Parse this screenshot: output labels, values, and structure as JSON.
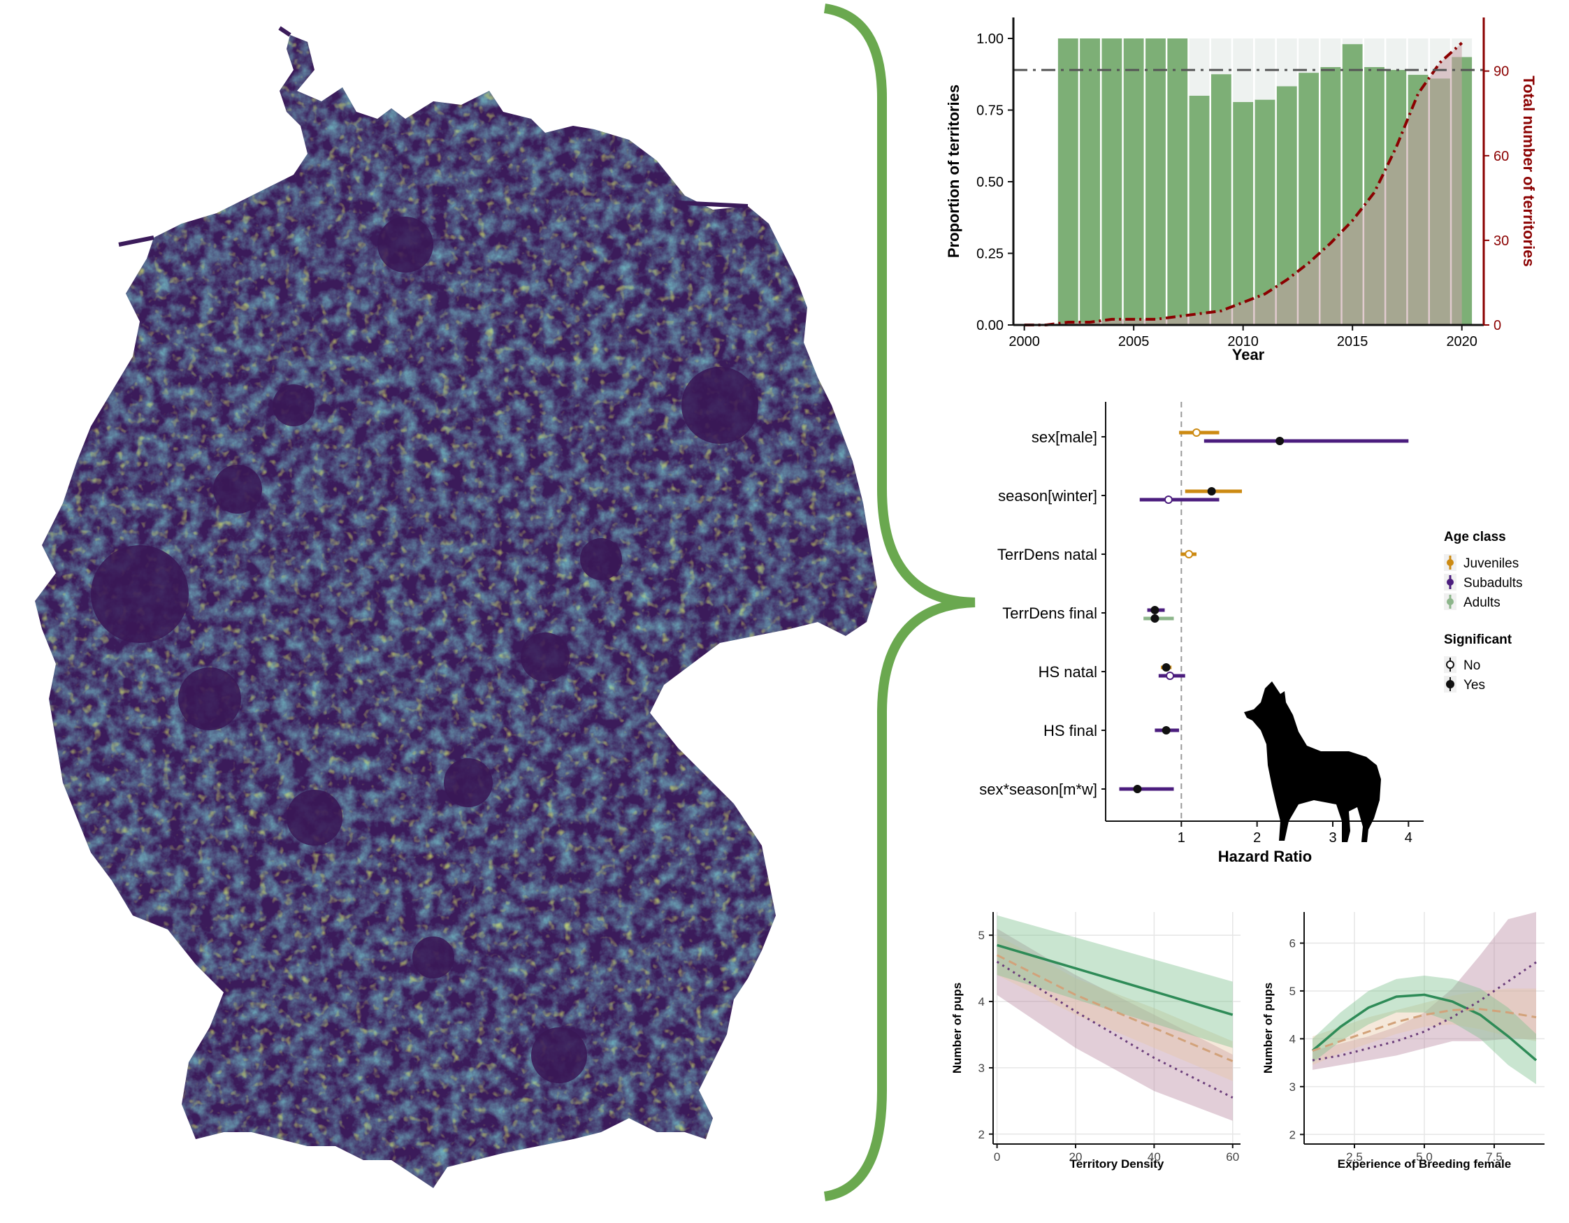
{
  "colors": {
    "brace": "#6aa84f",
    "viridis_dark": "#3b1b5a",
    "viridis_mid": "#2f6e8e",
    "viridis_teal": "#21908d",
    "viridis_yellow": "#c8e020",
    "bar_green": "#7daf76",
    "bar_bg": "#eef2f0",
    "cum_line": "#8b0000",
    "cum_fill": "#c9a0a8",
    "juveniles": "#cc8a12",
    "subadults": "#4b1d7e",
    "adults": "#8cb58a",
    "curve_green": "#2e8b57",
    "curve_tan": "#d2a27a",
    "curve_purple": "#6a3d7a"
  },
  "chart_data": [
    {
      "type": "bar",
      "xlabel": "Year",
      "ylabel": "Proportion of territories",
      "y2label": "Total number of territories",
      "x": [
        2002,
        2003,
        2004,
        2005,
        2006,
        2007,
        2008,
        2009,
        2010,
        2011,
        2012,
        2013,
        2014,
        2015,
        2016,
        2017,
        2018,
        2019,
        2020
      ],
      "values": [
        1.0,
        1.0,
        1.0,
        1.0,
        1.0,
        1.0,
        0.8,
        0.875,
        0.778,
        0.786,
        0.833,
        0.88,
        0.9,
        0.98,
        0.9,
        0.89,
        0.873,
        0.86,
        0.935
      ],
      "reference_line": 0.89,
      "cumulative_territories": {
        "x": [
          2000,
          2001,
          2002,
          2003,
          2004,
          2005,
          2006,
          2007,
          2008,
          2009,
          2010,
          2011,
          2012,
          2013,
          2014,
          2015,
          2016,
          2017,
          2018,
          2019,
          2020
        ],
        "values": [
          0,
          0,
          1,
          1,
          2,
          2,
          2,
          3,
          4,
          5,
          8,
          11,
          16,
          22,
          29,
          37,
          47,
          63,
          82,
          93,
          100
        ]
      },
      "xlim": [
        1999.5,
        2021
      ],
      "ylim": [
        0,
        1.0
      ],
      "y2lim": [
        0,
        109
      ],
      "xticks": [
        "2000",
        "2005",
        "2010",
        "2015",
        "2020"
      ],
      "yticks": [
        "0.00",
        "0.25",
        "0.50",
        "0.75",
        "1.00"
      ],
      "y2ticks": [
        "0",
        "30",
        "60",
        "90"
      ]
    },
    {
      "type": "scatter",
      "xlabel": "Hazard Ratio",
      "categories": [
        "sex[male]",
        "season[winter]",
        "TerrDens natal",
        "TerrDens final",
        "HS natal",
        "HS final",
        "sex*season[m*w]"
      ],
      "xticks": [
        "1",
        "2",
        "3",
        "4"
      ],
      "xlim": [
        0,
        4.2
      ],
      "reference_line": 1,
      "series": [
        {
          "name": "Juveniles",
          "points": [
            {
              "category": "sex[male]",
              "estimate": 1.2,
              "low": 0.97,
              "high": 1.5,
              "significant": false
            },
            {
              "category": "season[winter]",
              "estimate": 1.4,
              "low": 1.05,
              "high": 1.8,
              "significant": true
            },
            {
              "category": "TerrDens natal",
              "estimate": 1.1,
              "low": 0.99,
              "high": 1.2,
              "significant": false
            },
            {
              "category": "HS natal",
              "estimate": 0.8,
              "low": 0.73,
              "high": 0.87,
              "significant": true
            }
          ]
        },
        {
          "name": "Subadults",
          "points": [
            {
              "category": "sex[male]",
              "estimate": 2.3,
              "low": 1.3,
              "high": 4.0,
              "significant": true
            },
            {
              "category": "season[winter]",
              "estimate": 0.83,
              "low": 0.45,
              "high": 1.5,
              "significant": false
            },
            {
              "category": "TerrDens final",
              "estimate": 0.65,
              "low": 0.55,
              "high": 0.78,
              "significant": true
            },
            {
              "category": "HS natal",
              "estimate": 0.85,
              "low": 0.7,
              "high": 1.05,
              "significant": false
            },
            {
              "category": "HS final",
              "estimate": 0.8,
              "low": 0.65,
              "high": 0.97,
              "significant": true
            },
            {
              "category": "sex*season[m*w]",
              "estimate": 0.42,
              "low": 0.18,
              "high": 0.9,
              "significant": true
            }
          ]
        },
        {
          "name": "Adults",
          "points": [
            {
              "category": "TerrDens final",
              "estimate": 0.65,
              "low": 0.5,
              "high": 0.9,
              "significant": true
            }
          ]
        }
      ],
      "legend": {
        "age_title": "Age class",
        "age_items": [
          "Juveniles",
          "Subadults",
          "Adults"
        ],
        "sig_title": "Significant",
        "sig_items": [
          "No",
          "Yes"
        ]
      }
    },
    {
      "type": "line",
      "xlabel": "Territory Density",
      "ylabel": "Number of pups",
      "xticks": [
        "0",
        "20",
        "40",
        "60"
      ],
      "yticks": [
        "2",
        "3",
        "4",
        "5"
      ],
      "xlim": [
        -1,
        62
      ],
      "ylim": [
        1.85,
        5.35
      ],
      "series": [
        {
          "x": [
            0,
            60
          ],
          "values": [
            4.85,
            3.8
          ],
          "lower": [
            4.4,
            3.3
          ],
          "upper": [
            5.3,
            4.3
          ],
          "style": "solid"
        },
        {
          "x": [
            0,
            20,
            40,
            60
          ],
          "values": [
            4.7,
            4.1,
            3.6,
            3.1
          ],
          "lower": [
            4.4,
            3.8,
            3.3,
            2.8
          ],
          "upper": [
            5.0,
            4.35,
            3.9,
            3.4
          ],
          "style": "dashed"
        },
        {
          "x": [
            0,
            20,
            40,
            60
          ],
          "values": [
            4.6,
            3.85,
            3.15,
            2.55
          ],
          "lower": [
            4.1,
            3.3,
            2.65,
            2.2
          ],
          "upper": [
            5.1,
            4.4,
            3.8,
            3.2
          ],
          "style": "dotted"
        }
      ]
    },
    {
      "type": "line",
      "xlabel": "Experience of Breeding female",
      "ylabel": "Number of pups",
      "xticks": [
        "2.5",
        "5.0",
        "7.5"
      ],
      "yticks": [
        "2",
        "3",
        "4",
        "5",
        "6"
      ],
      "xlim": [
        0.7,
        9.3
      ],
      "ylim": [
        1.8,
        6.65
      ],
      "series": [
        {
          "x": [
            1,
            2,
            3,
            4,
            5,
            6,
            7,
            8,
            9
          ],
          "values": [
            3.75,
            4.25,
            4.65,
            4.88,
            4.92,
            4.78,
            4.5,
            4.05,
            3.55
          ],
          "lower": [
            3.5,
            3.95,
            4.3,
            4.55,
            4.55,
            4.35,
            4.0,
            3.45,
            3.05
          ],
          "upper": [
            4.0,
            4.55,
            5.0,
            5.25,
            5.32,
            5.25,
            5.05,
            4.65,
            4.1
          ],
          "style": "solid"
        },
        {
          "x": [
            1,
            2,
            3,
            4,
            5,
            6,
            7,
            8,
            9
          ],
          "values": [
            3.75,
            3.95,
            4.15,
            4.35,
            4.5,
            4.6,
            4.62,
            4.55,
            4.45
          ],
          "lower": [
            3.45,
            3.7,
            3.9,
            4.1,
            4.25,
            4.3,
            4.2,
            4.05,
            3.95
          ],
          "upper": [
            4.05,
            4.25,
            4.45,
            4.6,
            4.75,
            4.9,
            5.0,
            5.05,
            5.05
          ],
          "style": "dashed"
        },
        {
          "x": [
            1,
            2,
            3,
            4,
            5,
            6,
            7,
            8,
            9
          ],
          "values": [
            3.55,
            3.65,
            3.8,
            3.95,
            4.15,
            4.45,
            4.8,
            5.2,
            5.6
          ],
          "lower": [
            3.35,
            3.45,
            3.55,
            3.65,
            3.8,
            3.95,
            3.95,
            4.0,
            4.0
          ],
          "upper": [
            3.75,
            3.9,
            4.05,
            4.25,
            4.55,
            5.05,
            5.75,
            6.5,
            7.3
          ],
          "style": "dotted"
        }
      ]
    }
  ]
}
